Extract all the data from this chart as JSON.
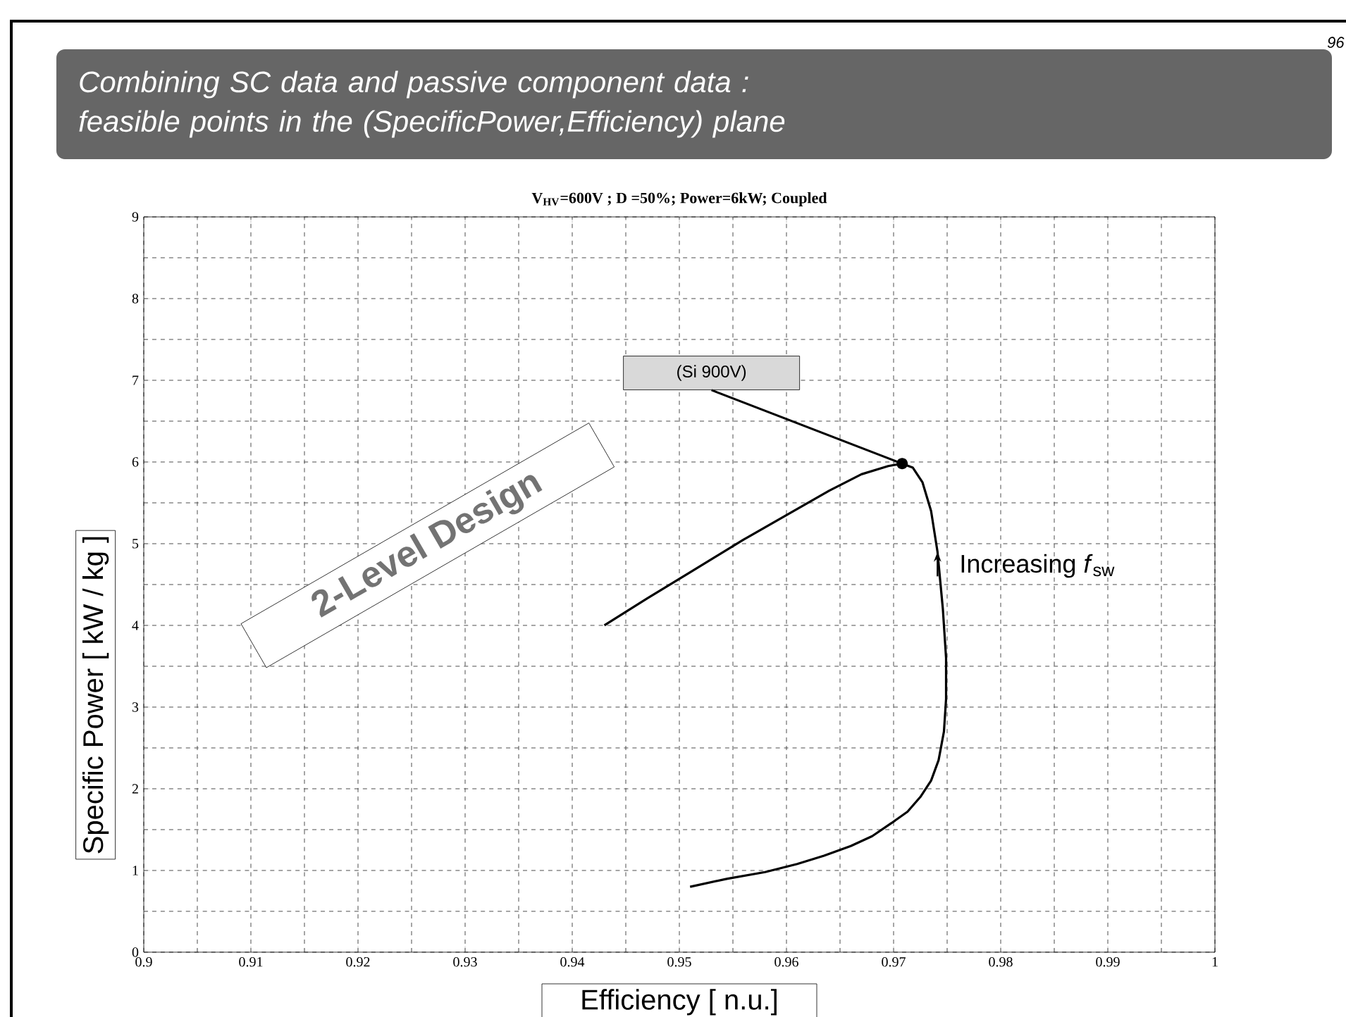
{
  "chart_data": {
    "type": "line",
    "title": "Combining SC data and passive component data : feasible points in the (SpecificPower,Efficiency) plane",
    "subtitle": "V$_{HV}$=600V ; D =50%; Power=6kW; Coupled",
    "xlabel": "Efficiency [ n.u.]",
    "ylabel": "Specific Power [ kW / kg ]",
    "x": [
      0.951,
      0.9545,
      0.958,
      0.961,
      0.9635,
      0.966,
      0.968,
      0.9698,
      0.9713,
      0.9725,
      0.9735,
      0.9742,
      0.9747,
      0.9749,
      0.9749,
      0.9746,
      0.9741,
      0.9735,
      0.9727,
      0.9718,
      0.9708,
      0.9695,
      0.967,
      0.964,
      0.96,
      0.956,
      0.951,
      0.947,
      0.943
    ],
    "series": [
      {
        "color": "#000000",
        "values": [
          0.8,
          0.9,
          0.98,
          1.08,
          1.18,
          1.3,
          1.42,
          1.58,
          1.72,
          1.9,
          2.1,
          2.35,
          2.7,
          3.1,
          3.6,
          4.2,
          4.9,
          5.4,
          5.75,
          5.93,
          5.98,
          5.95,
          5.85,
          5.65,
          5.35,
          5.05,
          4.65,
          4.33,
          4.0
        ]
      }
    ],
    "xlim": [
      0.9,
      1
    ],
    "ylim": [
      0,
      9
    ],
    "xticks": [
      0.9,
      0.91,
      0.92,
      0.93,
      0.94,
      0.95,
      0.96,
      0.97,
      0.98,
      0.99,
      1
    ],
    "yticks": [
      0,
      1,
      2,
      3,
      4,
      5,
      6,
      7,
      8,
      9
    ],
    "grid": true,
    "line_style": "solid",
    "annotations": [
      "96",
      "2-Level Design",
      {
        "text": "(Si 900V)",
        "x": 0.9708,
        "y": 5.98
      },
      {
        "text": "Increasing *f*$_{sw}$",
        "x": 0.9741,
        "y": 4.9
      }
    ]
  }
}
